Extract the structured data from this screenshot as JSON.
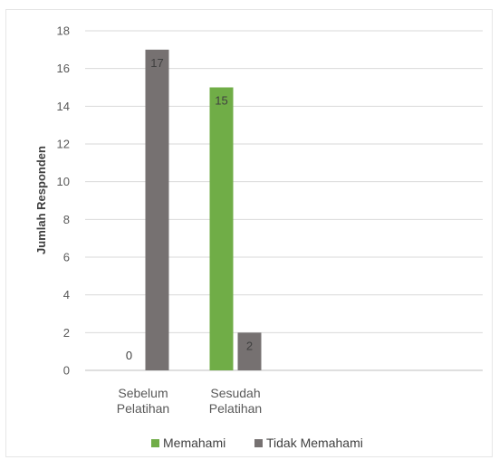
{
  "chart_data": {
    "type": "bar",
    "categories": [
      [
        "Sebelum",
        "Pelatihan"
      ],
      [
        "Sesudah",
        "Pelatihan"
      ]
    ],
    "series": [
      {
        "name": "Memahami",
        "values": [
          0,
          15
        ],
        "color": "#70AD47"
      },
      {
        "name": "Tidak Memahami",
        "values": [
          17,
          2
        ],
        "color": "#767171"
      }
    ],
    "ylabel": "Jumlah Responden",
    "ylim": [
      0,
      18
    ],
    "yticks": [
      0,
      2,
      4,
      6,
      8,
      10,
      12,
      14,
      16,
      18
    ],
    "grid": true,
    "legend": "bottom",
    "data_labels": true
  }
}
